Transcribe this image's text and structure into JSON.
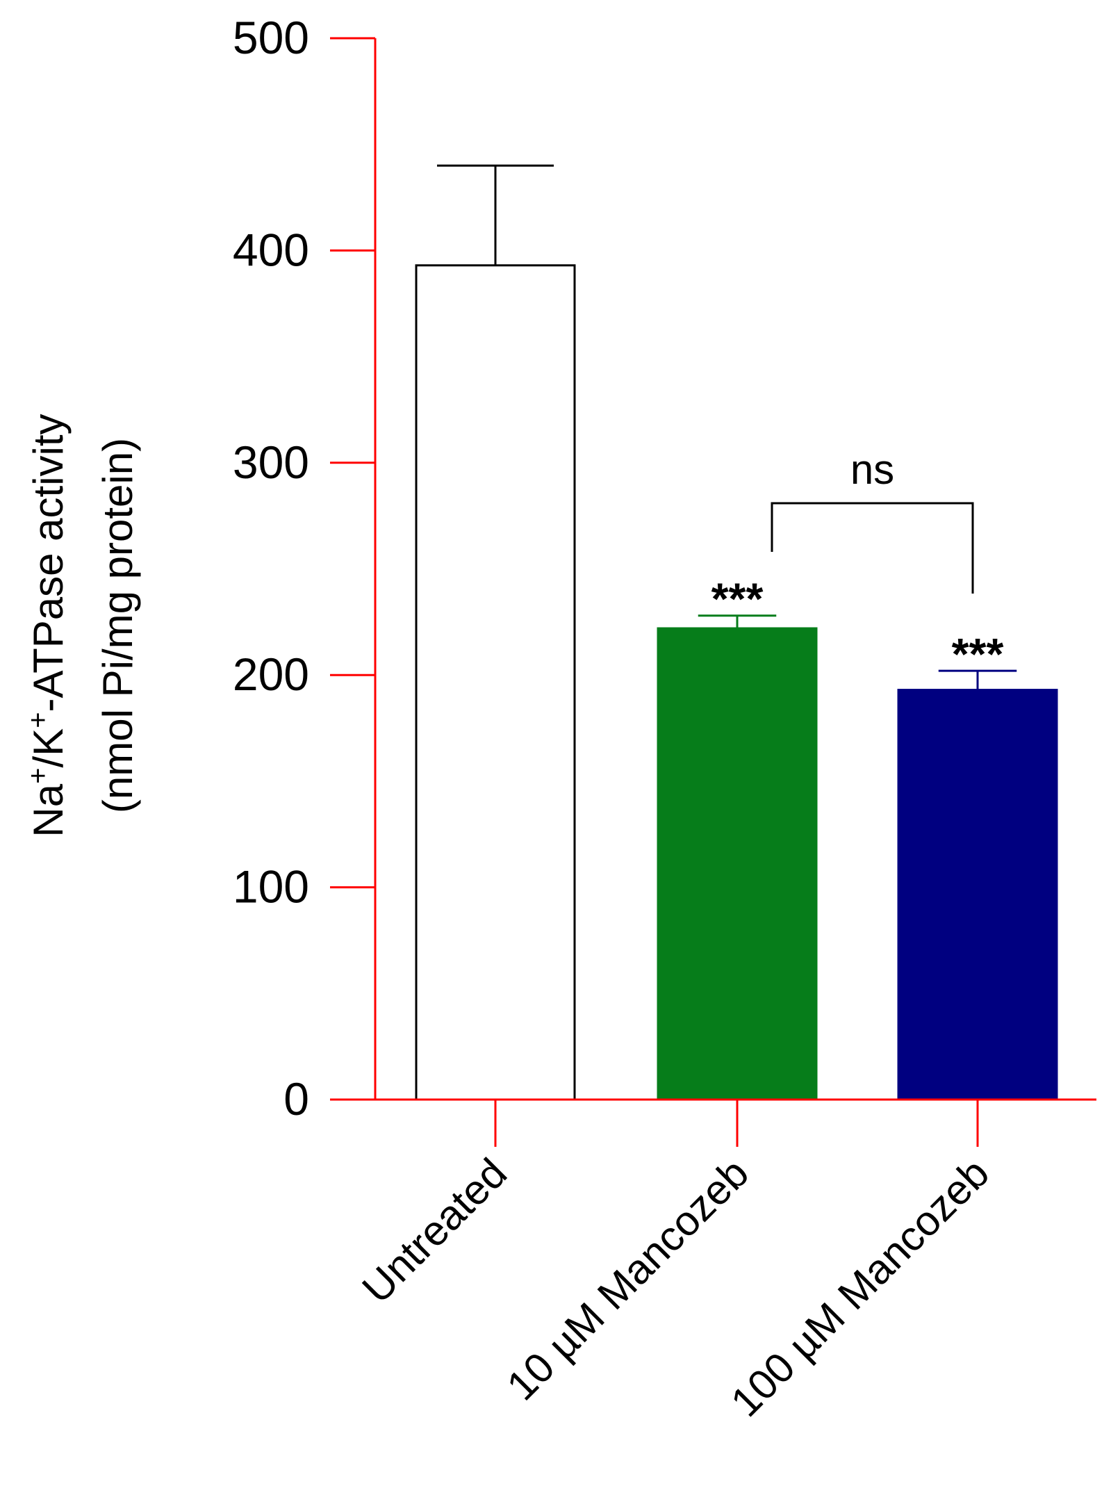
{
  "chart_data": {
    "type": "bar",
    "title": "",
    "xlabel": "",
    "ylabel_line1": "Na+/K+-ATPase activity",
    "ylabel_line2": "(nmol Pi/mg protein)",
    "ylim": [
      0,
      500
    ],
    "yticks": [
      "0",
      "100",
      "200",
      "300",
      "400",
      "500"
    ],
    "categories": [
      "Untreated",
      "10 µM Mancozeb",
      "100 µM Mancozeb"
    ],
    "values": [
      393,
      222,
      193
    ],
    "error_upper": [
      440,
      228,
      202
    ],
    "colors": [
      "#ffffff",
      "#067d1a",
      "#000080"
    ],
    "edge_colors": [
      "#000000",
      "#067d1a",
      "#000080"
    ],
    "significance": [
      "",
      "***",
      "***"
    ],
    "comparison": {
      "between": [
        "10 µM Mancozeb",
        "100 µM Mancozeb"
      ],
      "label": "ns"
    },
    "axis_color": "#ff0000",
    "grid": false,
    "legend": null
  }
}
